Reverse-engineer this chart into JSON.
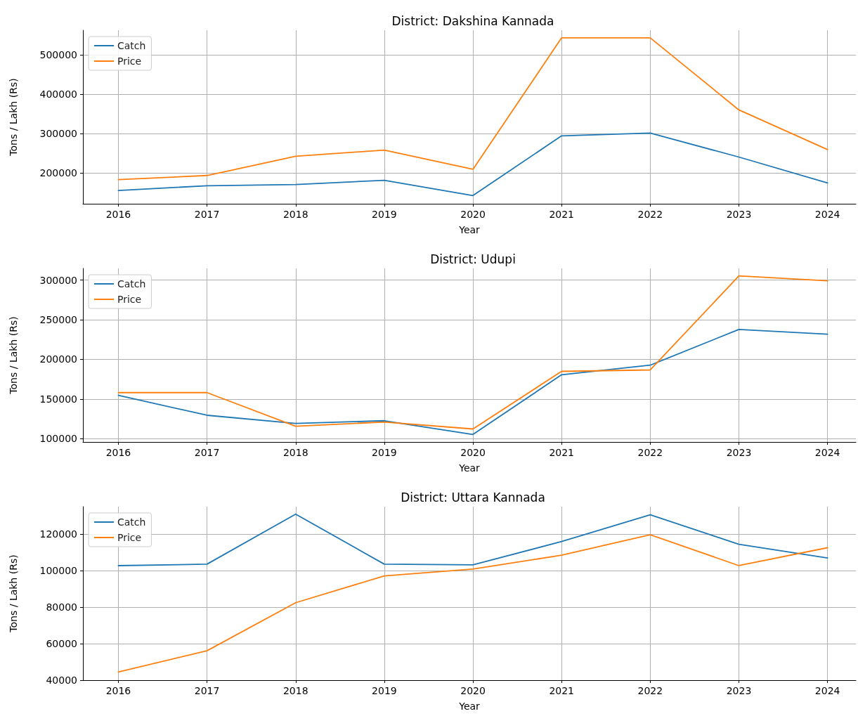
{
  "chart_data": [
    {
      "type": "line",
      "title": "District: Dakshina Kannada",
      "xlabel": "Year",
      "ylabel": "Tons / Lakh (Rs)",
      "x": [
        2016,
        2017,
        2018,
        2019,
        2020,
        2021,
        2022,
        2023,
        2024
      ],
      "xlim": [
        2015.6,
        2024.32
      ],
      "xticks": [
        2016,
        2017,
        2018,
        2019,
        2020,
        2021,
        2022,
        2023,
        2024
      ],
      "ylim": [
        121000,
        563000
      ],
      "yticks": [
        200000,
        300000,
        400000,
        500000
      ],
      "grid": true,
      "legend": "top left",
      "series": [
        {
          "name": "Catch",
          "color": "#1f77b4",
          "values": [
            154600,
            167000,
            170000,
            180800,
            142000,
            294000,
            301000,
            240000,
            174000
          ]
        },
        {
          "name": "Price",
          "color": "#ff7f0e",
          "values": [
            182500,
            193000,
            242000,
            257600,
            208700,
            543600,
            543600,
            360000,
            259000
          ]
        }
      ]
    },
    {
      "type": "line",
      "title": "District: Udupi",
      "xlabel": "Year",
      "ylabel": "Tons / Lakh (Rs)",
      "x": [
        2016,
        2017,
        2018,
        2019,
        2020,
        2021,
        2022,
        2023,
        2024
      ],
      "xlim": [
        2015.6,
        2024.32
      ],
      "xticks": [
        2016,
        2017,
        2018,
        2019,
        2020,
        2021,
        2022,
        2023,
        2024
      ],
      "ylim": [
        95700,
        314700
      ],
      "yticks": [
        100000,
        150000,
        200000,
        250000,
        300000
      ],
      "grid": true,
      "legend": "top left",
      "series": [
        {
          "name": "Catch",
          "color": "#1f77b4",
          "values": [
            154500,
            129400,
            119000,
            122500,
            105200,
            180500,
            192600,
            237700,
            231600
          ]
        },
        {
          "name": "Price",
          "color": "#ff7f0e",
          "values": [
            158000,
            158000,
            115600,
            120800,
            112100,
            184800,
            186600,
            305200,
            299100
          ]
        }
      ]
    },
    {
      "type": "line",
      "title": "District: Uttara Kannada",
      "xlabel": "Year",
      "ylabel": "Tons / Lakh (Rs)",
      "x": [
        2016,
        2017,
        2018,
        2019,
        2020,
        2021,
        2022,
        2023,
        2024
      ],
      "xlim": [
        2015.6,
        2024.32
      ],
      "xticks": [
        2016,
        2017,
        2018,
        2019,
        2020,
        2021,
        2022,
        2023,
        2024
      ],
      "ylim": [
        40000,
        135000
      ],
      "yticks": [
        40000,
        60000,
        80000,
        100000,
        120000
      ],
      "grid": true,
      "legend": "top left",
      "series": [
        {
          "name": "Catch",
          "color": "#1f77b4",
          "values": [
            102700,
            103500,
            130900,
            103500,
            103100,
            115900,
            130500,
            114400,
            106900
          ]
        },
        {
          "name": "Price",
          "color": "#ff7f0e",
          "values": [
            44500,
            56100,
            82400,
            97100,
            100800,
            108400,
            119600,
            102700,
            112500
          ]
        }
      ]
    }
  ]
}
